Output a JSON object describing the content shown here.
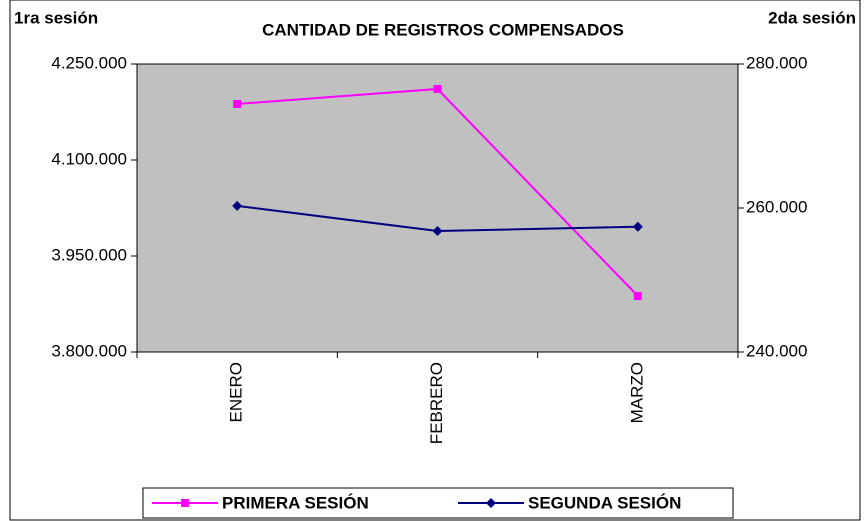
{
  "chart_data": {
    "type": "line",
    "title": "CANTIDAD DE REGISTROS COMPENSADOS",
    "y_label": "1ra sesión",
    "y2_label": "2da sesión",
    "categories": [
      "ENERO",
      "FEBRERO",
      "MARZO"
    ],
    "series": [
      {
        "name": "PRIMERA SESIÓN",
        "color": "#ff00ff",
        "marker": "square",
        "values": [
          4187500,
          4211000,
          3887500
        ]
      },
      {
        "name": "SEGUNDA SESIÓN",
        "color": "#000080",
        "marker": "diamond",
        "axis": "y2",
        "values": [
          260300,
          256800,
          257400
        ]
      }
    ],
    "ylim": [
      3800000,
      4250000
    ],
    "yticks": [
      {
        "value": 3800000,
        "label": "3.800.000"
      },
      {
        "value": 3950000,
        "label": "3.950.000"
      },
      {
        "value": 4100000,
        "label": "4.100.000"
      },
      {
        "value": 4250000,
        "label": "4.250.000"
      }
    ],
    "y2lim": [
      240000,
      280000
    ],
    "y2ticks": [
      {
        "value": 240000,
        "label": "240.000"
      },
      {
        "value": 260000,
        "label": "260.000"
      },
      {
        "value": 280000,
        "label": "280.000"
      }
    ],
    "plot_background": "#c0c0c0",
    "legend": "bottom"
  }
}
